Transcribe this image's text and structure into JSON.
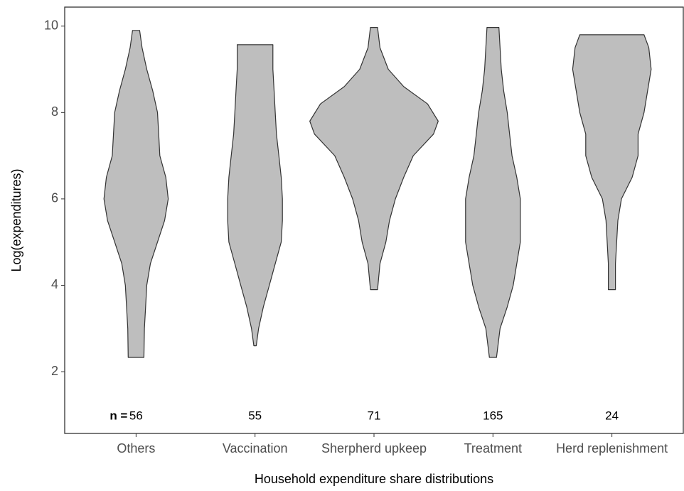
{
  "chart_data": {
    "type": "violin",
    "x_label": "Household expenditure share distributions",
    "y_label": "Log(expenditures)",
    "categories": [
      "Others",
      "Vaccination",
      "Sherpherd upkeep",
      "Treatment",
      "Herd replenishment"
    ],
    "xlim": [
      0.4,
      5.6
    ],
    "ylim": [
      0.57,
      10.44
    ],
    "yticks": [
      2,
      4,
      6,
      8,
      10
    ],
    "color": "#bebebe",
    "n_label": "n =",
    "counts": [
      56,
      55,
      71,
      165,
      24
    ],
    "violins": [
      {
        "y": [
          2.33,
          3,
          3.5,
          4,
          4.5,
          5,
          5.5,
          6,
          6.5,
          7,
          7.5,
          8,
          8.5,
          9,
          9.5,
          9.9
        ],
        "w": [
          0.066,
          0.07,
          0.08,
          0.09,
          0.12,
          0.18,
          0.24,
          0.27,
          0.25,
          0.2,
          0.19,
          0.18,
          0.14,
          0.09,
          0.05,
          0.03
        ]
      },
      {
        "y": [
          2.6,
          3,
          3.5,
          4,
          4.5,
          5,
          5.5,
          6,
          6.5,
          7,
          7.5,
          8,
          8.5,
          9,
          9.57
        ],
        "w": [
          0.01,
          0.03,
          0.07,
          0.12,
          0.17,
          0.22,
          0.23,
          0.23,
          0.22,
          0.2,
          0.18,
          0.17,
          0.16,
          0.15,
          0.15
        ]
      },
      {
        "y": [
          3.9,
          4.5,
          5,
          5.5,
          6,
          6.5,
          7,
          7.5,
          7.8,
          8.2,
          8.6,
          9,
          9.5,
          9.97
        ],
        "w": [
          0.03,
          0.05,
          0.1,
          0.13,
          0.18,
          0.25,
          0.33,
          0.5,
          0.54,
          0.45,
          0.25,
          0.12,
          0.05,
          0.03
        ]
      },
      {
        "y": [
          2.33,
          3,
          3.5,
          4,
          4.5,
          5,
          5.5,
          6,
          6.5,
          7,
          7.5,
          8,
          8.5,
          9,
          9.5,
          9.97
        ],
        "w": [
          0.03,
          0.06,
          0.12,
          0.17,
          0.2,
          0.23,
          0.23,
          0.23,
          0.2,
          0.16,
          0.14,
          0.12,
          0.09,
          0.07,
          0.06,
          0.05
        ]
      },
      {
        "y": [
          3.9,
          4.5,
          5.5,
          6,
          6.5,
          7,
          7.5,
          8,
          8.5,
          9,
          9.5,
          9.8
        ],
        "w": [
          0.03,
          0.03,
          0.05,
          0.08,
          0.17,
          0.22,
          0.22,
          0.27,
          0.3,
          0.33,
          0.31,
          0.27
        ]
      }
    ]
  }
}
